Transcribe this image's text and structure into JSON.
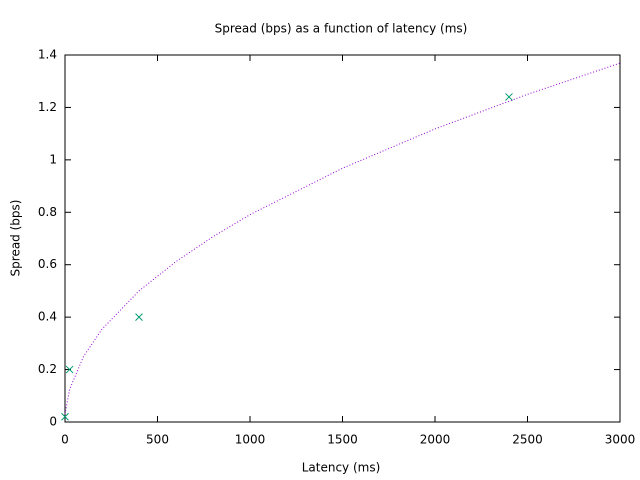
{
  "chart_data": {
    "type": "scatter",
    "title": "Spread (bps) as a function of latency (ms)",
    "x_label": "Latency (ms)",
    "y_label": "Spread (bps)",
    "xlim": [
      0,
      3000
    ],
    "xticks": [
      0,
      500,
      1000,
      1500,
      2000,
      2500,
      3000
    ],
    "ylim": [
      0,
      1.4
    ],
    "yticks": [
      0,
      0.2,
      0.4,
      0.6,
      0.8,
      1,
      1.2,
      1.4
    ],
    "series": [
      {
        "kind": "points",
        "color": "#009e73",
        "x": [
          0,
          25,
          400,
          2400
        ],
        "values": [
          0.02,
          0.2,
          0.4,
          1.24
        ]
      },
      {
        "kind": "line",
        "color": "#9400d3",
        "x": [
          0,
          25,
          100,
          200,
          400,
          600,
          800,
          1000,
          1500,
          2000,
          2500,
          3000
        ],
        "values": [
          0.03,
          0.125,
          0.25,
          0.354,
          0.5,
          0.612,
          0.707,
          0.791,
          0.968,
          1.118,
          1.25,
          1.369
        ]
      }
    ]
  }
}
